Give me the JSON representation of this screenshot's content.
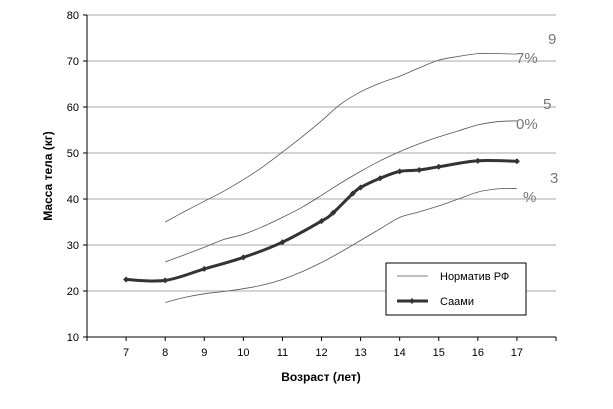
{
  "chart_data": {
    "type": "line",
    "xlabel": "Возраст (лет)",
    "ylabel": "Масса тела (кг)",
    "ylim": [
      10,
      80
    ],
    "xlim": [
      6,
      18
    ],
    "yticks": [
      10,
      20,
      30,
      40,
      50,
      60,
      70,
      80
    ],
    "xticks": [
      7,
      8,
      9,
      10,
      11,
      12,
      13,
      14,
      15,
      16,
      17
    ],
    "grid": "horizontal",
    "legend": {
      "placement": "bottom-right",
      "entries": [
        "Норматив РФ",
        "Саами"
      ]
    },
    "percentile_labels": [
      {
        "top": "9",
        "bottom": "7%"
      },
      {
        "top": "5",
        "bottom": "0%"
      },
      {
        "top": "3",
        "bottom": "%"
      }
    ],
    "series": [
      {
        "name": "Норматив РФ",
        "x": [
          8,
          8.5,
          9,
          9.5,
          10,
          10.5,
          11,
          11.5,
          12,
          12.5,
          13,
          13.5,
          14,
          14.5,
          15,
          15.5,
          16,
          16.5,
          17
        ],
        "values": [
          35.0,
          37.3,
          39.5,
          41.7,
          44.2,
          47.0,
          50.2,
          53.5,
          57.0,
          60.7,
          63.3,
          65.2,
          66.7,
          68.5,
          70.2,
          71.0,
          71.6,
          71.6,
          71.5
        ]
      },
      {
        "name": "Норматив РФ",
        "x": [
          8,
          8.5,
          9,
          9.5,
          10,
          10.5,
          11,
          11.5,
          12,
          12.5,
          13,
          13.5,
          14,
          14.5,
          15,
          15.5,
          16,
          16.5,
          17
        ],
        "values": [
          26.3,
          27.9,
          29.5,
          31.2,
          32.3,
          34.0,
          36.0,
          38.2,
          40.8,
          43.5,
          46.0,
          48.3,
          50.3,
          52.0,
          53.5,
          54.8,
          56.1,
          56.8,
          57.0
        ]
      },
      {
        "name": "Норматив РФ",
        "x": [
          8,
          8.5,
          9,
          9.5,
          10,
          10.5,
          11,
          11.5,
          12,
          12.5,
          13,
          13.5,
          14,
          14.5,
          15,
          15.5,
          16,
          16.5,
          17
        ],
        "values": [
          17.5,
          18.6,
          19.4,
          19.9,
          20.5,
          21.3,
          22.5,
          24.2,
          26.2,
          28.5,
          31.0,
          33.5,
          36.0,
          37.2,
          38.5,
          40.0,
          41.5,
          42.2,
          42.3
        ]
      },
      {
        "name": "Саами",
        "x": [
          7,
          8,
          9,
          10,
          11,
          12,
          12.3,
          12.8,
          13,
          13.5,
          14,
          14.5,
          15,
          16,
          17
        ],
        "values": [
          22.5,
          22.3,
          24.8,
          27.3,
          30.6,
          35.2,
          37.0,
          41.2,
          42.5,
          44.5,
          46.0,
          46.3,
          47.0,
          48.3,
          48.2
        ]
      }
    ]
  }
}
